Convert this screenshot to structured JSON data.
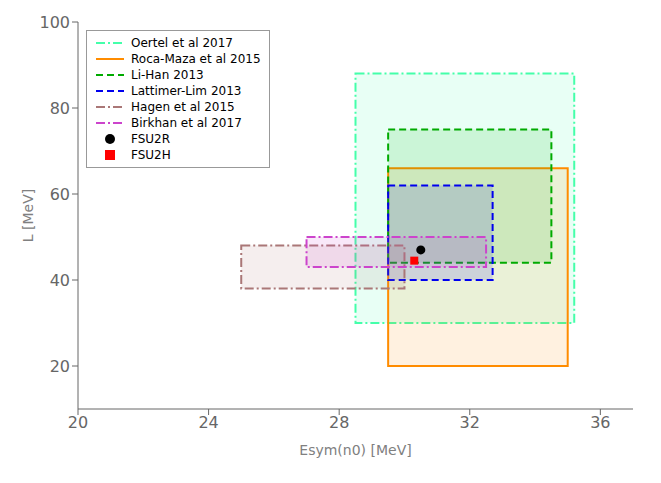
{
  "chart_data": {
    "type": "scatter",
    "xlabel": "Esym(n0) [MeV]",
    "ylabel": "L [MeV]",
    "xlim": [
      20,
      37
    ],
    "ylim": [
      10,
      100
    ],
    "xticks": [
      20,
      24,
      28,
      32,
      36
    ],
    "yticks": [
      20,
      40,
      60,
      80,
      100
    ],
    "legend": "upper left",
    "regions": [
      {
        "name": "Oertel et al 2017",
        "x0": 28.5,
        "y0": 30,
        "x1": 35.2,
        "y1": 88,
        "color": "#44ffaa",
        "line_style": "dashdot"
      },
      {
        "name": "Roca-Maza et al 2015",
        "x0": 29.5,
        "y0": 20,
        "x1": 35.0,
        "y1": 66,
        "color": "#ff8c00",
        "line_style": "solid"
      },
      {
        "name": "Li-Han 2013",
        "x0": 29.5,
        "y0": 44,
        "x1": 34.5,
        "y1": 75,
        "color": "#00aa00",
        "line_style": "dashed"
      },
      {
        "name": "Lattimer-Lim 2013",
        "x0": 29.5,
        "y0": 40,
        "x1": 32.7,
        "y1": 62,
        "color": "#0000ee",
        "line_style": "dashed"
      },
      {
        "name": "Hagen et al 2015",
        "x0": 25.0,
        "y0": 38,
        "x1": 30.0,
        "y1": 48,
        "color": "#aa7777",
        "line_style": "dashdot"
      },
      {
        "name": "Birkhan et al 2017",
        "x0": 27.0,
        "y0": 43,
        "x1": 32.5,
        "y1": 50,
        "color": "#cc44cc",
        "line_style": "dashdot"
      }
    ],
    "series": [
      {
        "name": "FSU2R",
        "color": "black",
        "marker": "o",
        "x": [
          30.5
        ],
        "y": [
          47.0
        ]
      },
      {
        "name": "FSU2H",
        "color": "red",
        "marker": "s",
        "x": [
          30.3
        ],
        "y": [
          44.5
        ]
      }
    ]
  }
}
